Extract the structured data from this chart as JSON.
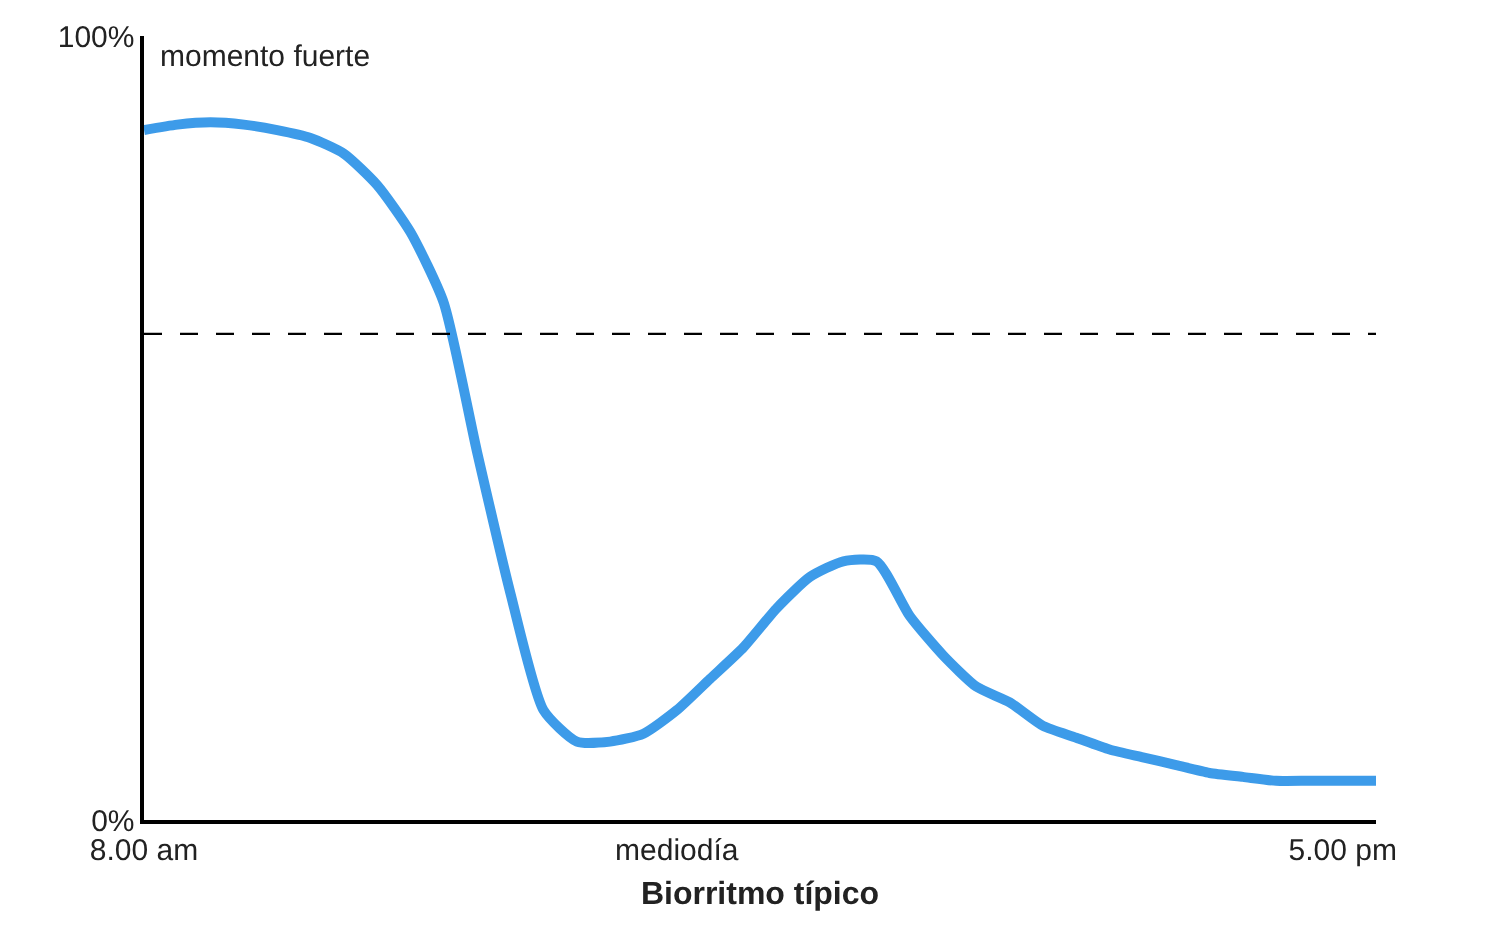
{
  "chart_data": {
    "type": "line",
    "xlabel": "Biorritmo típico",
    "annotations": [
      "momento fuerte"
    ],
    "categories": [
      "8.00 am",
      null,
      null,
      null,
      null,
      null,
      null,
      null,
      null,
      null,
      null,
      null,
      null,
      null,
      null,
      null,
      "mediodía",
      null,
      null,
      null,
      null,
      null,
      null,
      null,
      null,
      null,
      null,
      null,
      null,
      null,
      null,
      null,
      null,
      null,
      null,
      null,
      "5.00 pm",
      null
    ],
    "series": [
      {
        "color": "#3d9be9",
        "values": [
          88,
          88.7,
          89,
          88.7,
          88,
          87,
          85,
          81,
          75,
          66,
          47,
          29,
          14,
          10,
          10,
          11,
          14,
          18,
          22,
          27,
          31,
          33,
          33,
          26,
          21,
          17,
          15,
          12,
          10.5,
          9,
          8,
          7,
          6,
          5.5,
          5,
          5,
          5,
          5
        ]
      }
    ],
    "ylim": [
      0,
      100
    ],
    "yticks": [
      {
        "value": 0,
        "label": "0%"
      },
      {
        "value": 100,
        "label": "100%"
      }
    ],
    "ref_lines": [
      {
        "axis": "y",
        "value": 62,
        "color": "#000000",
        "line_style": "dashed"
      }
    ],
    "grid": false,
    "marker": "none",
    "line_style": "solid"
  }
}
